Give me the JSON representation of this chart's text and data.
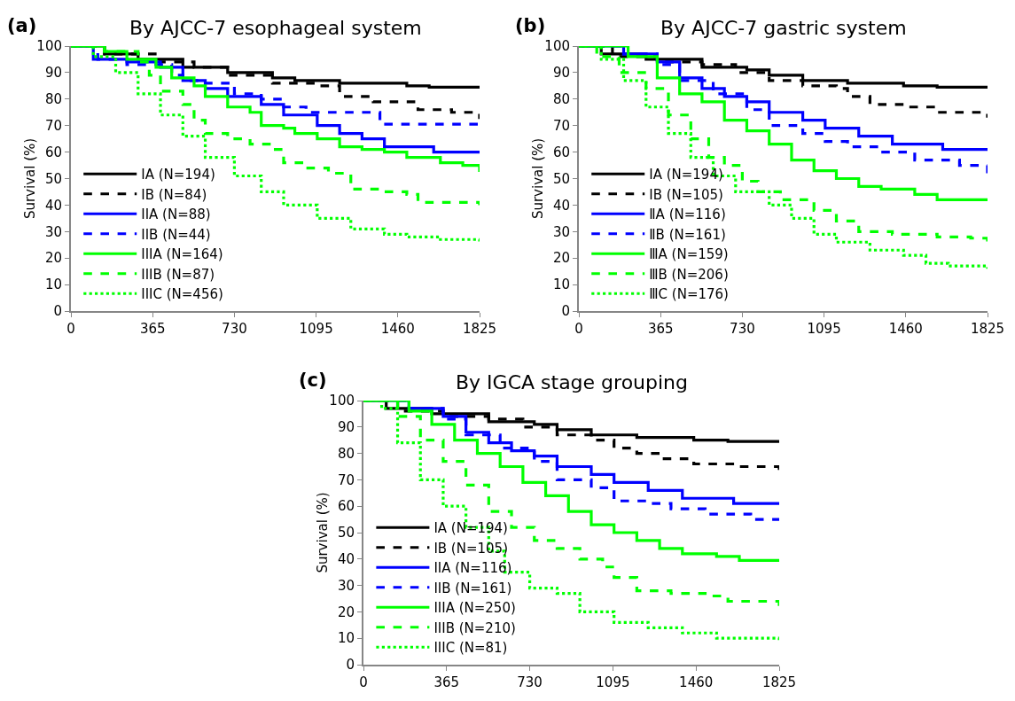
{
  "chart_data": [
    {
      "type": "step",
      "title": "By AJCC-7 esophageal system",
      "annotations": [
        "(a)"
      ],
      "ylabel": "Survival (%)",
      "xlim": [
        0,
        1825
      ],
      "xticks": [
        0,
        365,
        730,
        1095,
        1460,
        1825
      ],
      "ylim": [
        0,
        100
      ],
      "yticks": [
        0,
        10,
        20,
        30,
        40,
        50,
        60,
        70,
        80,
        90,
        100
      ],
      "legend": "bottom left",
      "series": [
        {
          "name": "IA (N=194)",
          "color": "#000000",
          "line_style": "solid",
          "x": [
            0,
            150,
            300,
            500,
            700,
            900,
            1000,
            1200,
            1500,
            1600,
            1825
          ],
          "values": [
            100,
            97,
            95,
            92,
            90,
            88,
            87,
            86,
            85,
            84.5,
            84.5
          ]
        },
        {
          "name": "IB (N=84)",
          "color": "#000000",
          "line_style": "dashed",
          "x": [
            0,
            150,
            400,
            550,
            700,
            900,
            1100,
            1200,
            1350,
            1550,
            1700,
            1825
          ],
          "values": [
            100,
            97,
            94,
            92,
            89,
            86,
            85,
            81,
            79,
            76,
            75,
            72.5
          ]
        },
        {
          "name": "IIA (N=88)",
          "color": "#0000ff",
          "line_style": "solid",
          "x": [
            0,
            100,
            250,
            400,
            500,
            600,
            700,
            850,
            950,
            1100,
            1200,
            1300,
            1400,
            1620,
            1825
          ],
          "values": [
            100,
            95,
            94,
            92,
            87,
            84,
            81,
            78,
            74,
            70,
            67,
            65,
            62,
            60,
            60
          ]
        },
        {
          "name": "IIB (N=44)",
          "color": "#0000ff",
          "line_style": "dashed",
          "x": [
            0,
            120,
            250,
            450,
            500,
            600,
            730,
            850,
            950,
            1050,
            1380,
            1825
          ],
          "values": [
            100,
            95,
            93,
            89,
            87,
            86,
            82,
            80,
            77,
            75,
            70.5,
            70.5
          ]
        },
        {
          "name": "IIIA (N=164)",
          "color": "#00ff00",
          "line_style": "solid",
          "x": [
            0,
            150,
            250,
            380,
            450,
            550,
            600,
            700,
            800,
            850,
            950,
            1000,
            1100,
            1200,
            1300,
            1400,
            1500,
            1650,
            1750,
            1825
          ],
          "values": [
            100,
            98,
            95,
            92,
            88,
            85,
            81,
            77,
            75,
            70,
            69,
            67,
            65,
            62,
            61,
            60,
            58,
            56,
            55,
            52.5
          ]
        },
        {
          "name": "IIIB (N=87)",
          "color": "#00ff00",
          "line_style": "dashed",
          "x": [
            0,
            150,
            300,
            350,
            400,
            500,
            550,
            600,
            700,
            800,
            900,
            950,
            1050,
            1150,
            1250,
            1400,
            1500,
            1550,
            1825
          ],
          "values": [
            100,
            98,
            94,
            89,
            83,
            78,
            72,
            67,
            65,
            63,
            61,
            56,
            54,
            52,
            46,
            45,
            44,
            41,
            40
          ]
        },
        {
          "name": "IIIC (N=456)",
          "color": "#00ff00",
          "line_style": "dotted",
          "x": [
            0,
            100,
            200,
            300,
            400,
            500,
            600,
            730,
            850,
            950,
            1100,
            1250,
            1400,
            1500,
            1650,
            1825
          ],
          "values": [
            100,
            96,
            90,
            82,
            74,
            66,
            58,
            51,
            45,
            40,
            35,
            31,
            29,
            28,
            27,
            25.5
          ]
        }
      ]
    },
    {
      "type": "step",
      "title": "By AJCC-7 gastric system",
      "annotations": [
        "(b)"
      ],
      "ylabel": "Survival (%)",
      "xlim": [
        0,
        1825
      ],
      "xticks": [
        0,
        365,
        730,
        1095,
        1460,
        1825
      ],
      "ylim": [
        0,
        100
      ],
      "yticks": [
        0,
        10,
        20,
        30,
        40,
        50,
        60,
        70,
        80,
        90,
        100
      ],
      "legend": "bottom left",
      "series": [
        {
          "name": "ⅠA (N=194)",
          "color": "#000000",
          "line_style": "solid",
          "x": [
            0,
            100,
            300,
            550,
            750,
            850,
            1000,
            1200,
            1450,
            1600,
            1825
          ],
          "values": [
            100,
            97,
            95,
            92,
            91,
            89,
            87,
            86,
            85,
            84.5,
            84.5
          ]
        },
        {
          "name": "ⅠB (N=105)",
          "color": "#000000",
          "line_style": "dashed",
          "x": [
            0,
            150,
            350,
            550,
            700,
            850,
            1000,
            1150,
            1200,
            1300,
            1450,
            1600,
            1825
          ],
          "values": [
            100,
            96,
            94,
            93,
            90,
            87,
            85,
            84,
            81,
            78,
            77,
            75,
            73
          ]
        },
        {
          "name": "ⅡA (N=116)",
          "color": "#0000ff",
          "line_style": "solid",
          "x": [
            0,
            200,
            350,
            450,
            550,
            650,
            750,
            850,
            1000,
            1100,
            1250,
            1400,
            1625,
            1825
          ],
          "values": [
            100,
            97,
            94,
            88,
            84,
            81,
            79,
            75,
            72,
            69,
            66,
            63,
            61,
            61
          ]
        },
        {
          "name": "ⅡB (N=161)",
          "color": "#0000ff",
          "line_style": "dashed",
          "x": [
            0,
            200,
            350,
            450,
            600,
            750,
            850,
            1000,
            1100,
            1200,
            1350,
            1500,
            1700,
            1825
          ],
          "values": [
            100,
            97,
            93,
            87,
            82,
            76,
            70,
            67,
            64,
            62,
            60,
            57,
            55,
            52
          ]
        },
        {
          "name": "ⅢA (N=159)",
          "color": "#00ff00",
          "line_style": "solid",
          "x": [
            0,
            100,
            220,
            350,
            450,
            550,
            650,
            750,
            850,
            950,
            1050,
            1150,
            1250,
            1350,
            1500,
            1600,
            1825
          ],
          "values": [
            100,
            100,
            96,
            88,
            82,
            79,
            72,
            68,
            63,
            57,
            53,
            50,
            47,
            46,
            44,
            42,
            42
          ]
        },
        {
          "name": "ⅢB (N=206)",
          "color": "#00ff00",
          "line_style": "dashed",
          "x": [
            0,
            80,
            180,
            300,
            400,
            500,
            580,
            650,
            730,
            800,
            900,
            1050,
            1150,
            1250,
            1400,
            1600,
            1750,
            1825
          ],
          "values": [
            100,
            96,
            90,
            84,
            74,
            65,
            58,
            55,
            49,
            45,
            42,
            38,
            34,
            30,
            29,
            28,
            27.5,
            25.5
          ]
        },
        {
          "name": "ⅢC (N=176)",
          "color": "#00ff00",
          "line_style": "dotted",
          "x": [
            0,
            100,
            200,
            300,
            400,
            500,
            600,
            700,
            850,
            950,
            1050,
            1150,
            1300,
            1450,
            1550,
            1650,
            1825
          ],
          "values": [
            100,
            95,
            87,
            77,
            67,
            58,
            51,
            45,
            40,
            35,
            29,
            26,
            23,
            21,
            18,
            17,
            16
          ]
        }
      ]
    },
    {
      "type": "step",
      "title": "By IGCA stage grouping",
      "annotations": [
        "(c)"
      ],
      "ylabel": "Survival (%)",
      "xlim": [
        0,
        1825
      ],
      "xticks": [
        0,
        365,
        730,
        1095,
        1460,
        1825
      ],
      "ylim": [
        0,
        100
      ],
      "yticks": [
        0,
        10,
        20,
        30,
        40,
        50,
        60,
        70,
        80,
        90,
        100
      ],
      "legend": "bottom left",
      "series": [
        {
          "name": "IA (N=194)",
          "color": "#000000",
          "line_style": "solid",
          "x": [
            0,
            100,
            300,
            550,
            750,
            850,
            1000,
            1200,
            1450,
            1600,
            1825
          ],
          "values": [
            100,
            97,
            95,
            92,
            91,
            89,
            87,
            86,
            85,
            84.5,
            84.5
          ]
        },
        {
          "name": "IB (N=105)",
          "color": "#000000",
          "line_style": "dashed",
          "x": [
            0,
            150,
            350,
            550,
            700,
            850,
            1000,
            1100,
            1200,
            1300,
            1450,
            1650,
            1825
          ],
          "values": [
            100,
            96,
            94,
            93,
            90,
            87,
            85,
            82,
            80,
            78,
            76,
            75,
            73
          ]
        },
        {
          "name": "IIA (N=116)",
          "color": "#0000ff",
          "line_style": "solid",
          "x": [
            0,
            200,
            350,
            450,
            550,
            650,
            750,
            850,
            1000,
            1100,
            1250,
            1400,
            1625,
            1825
          ],
          "values": [
            100,
            97,
            94,
            88,
            84,
            81,
            79,
            75,
            72,
            69,
            66,
            63,
            61,
            61
          ]
        },
        {
          "name": "IIB (N=161)",
          "color": "#0000ff",
          "line_style": "dashed",
          "x": [
            0,
            200,
            350,
            450,
            600,
            750,
            850,
            1000,
            1100,
            1250,
            1350,
            1500,
            1700,
            1825
          ],
          "values": [
            100,
            97,
            93,
            87,
            82,
            77,
            70,
            67,
            62,
            61,
            59,
            57,
            55,
            52
          ]
        },
        {
          "name": "IIIA (N=250)",
          "color": "#00ff00",
          "line_style": "solid",
          "x": [
            0,
            200,
            300,
            400,
            500,
            600,
            700,
            800,
            900,
            1000,
            1100,
            1200,
            1300,
            1400,
            1550,
            1650,
            1825
          ],
          "values": [
            100,
            96,
            91,
            85,
            80,
            75,
            69,
            64,
            58,
            53,
            50,
            47,
            44,
            42,
            41,
            39.5,
            39
          ]
        },
        {
          "name": "IIIB (N=210)",
          "color": "#00ff00",
          "line_style": "dashed",
          "x": [
            0,
            150,
            250,
            350,
            450,
            550,
            650,
            750,
            850,
            950,
            1050,
            1100,
            1200,
            1350,
            1500,
            1600,
            1825
          ],
          "values": [
            100,
            94,
            85,
            77,
            68,
            58,
            52,
            47,
            44,
            40,
            37,
            33,
            28,
            27,
            26,
            24,
            22
          ]
        },
        {
          "name": "IIIC (N=81)",
          "color": "#00ff00",
          "line_style": "dotted",
          "x": [
            0,
            80,
            150,
            250,
            350,
            450,
            550,
            620,
            730,
            850,
            950,
            1100,
            1250,
            1400,
            1550,
            1825
          ],
          "values": [
            100,
            97,
            84,
            70,
            60,
            52,
            43,
            35,
            29,
            27,
            20,
            16,
            14,
            12,
            10,
            9
          ]
        }
      ]
    }
  ]
}
